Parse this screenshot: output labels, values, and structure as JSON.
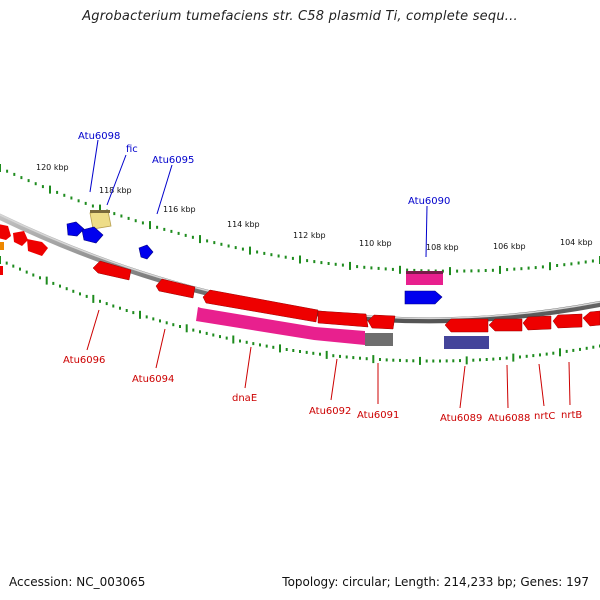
{
  "title": "Agrobacterium tumefaciens str. C58 plasmid Ti, complete sequ...",
  "footer": {
    "accession": "Accession: NC_003065",
    "summary": "Topology: circular; Length: 214,233 bp; Genes: 197"
  },
  "colors": {
    "backbone": "#8a8a8a",
    "tick": "#1e8c1e",
    "cds_red": "#ee0000",
    "cds_blue": "#0000ee",
    "cds_pink": "#e8208e",
    "cds_gray": "#6e6e6e",
    "cds_slate": "#44449a",
    "cds_yellow": "#eedd88",
    "cds_orange": "#ee8800",
    "label_blue": "#0000cc",
    "label_red": "#cc0000"
  },
  "ticks": [
    "120 kbp",
    "118 kbp",
    "116 kbp",
    "114 kbp",
    "112 kbp",
    "110 kbp",
    "108 kbp",
    "106 kbp",
    "104 kbp"
  ],
  "gene_labels": {
    "outer": [
      "Atu6098",
      "fic",
      "Atu6095",
      "Atu6090"
    ],
    "inner": [
      "Atu6096",
      "Atu6094",
      "dnaE",
      "Atu6092",
      "Atu6091",
      "Atu6089",
      "Atu6088",
      "nrtC",
      "nrtB"
    ]
  }
}
